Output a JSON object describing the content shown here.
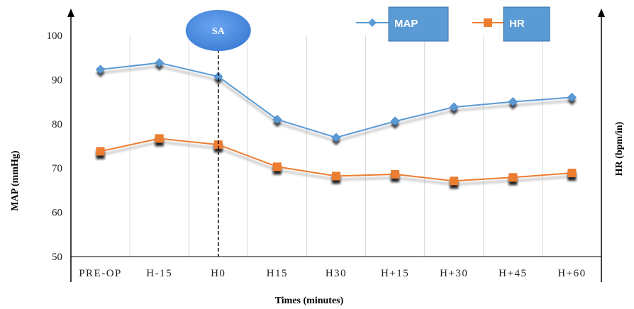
{
  "chart_data": {
    "type": "line",
    "categories": [
      "PRE-OP",
      "H-15",
      "H0",
      "H15",
      "H30",
      "H+15",
      "H+30",
      "H+45",
      "H+60"
    ],
    "series": [
      {
        "name": "MAP",
        "values": [
          92.3,
          93.8,
          90.7,
          81.0,
          76.9,
          80.6,
          83.8,
          85.0,
          86.0
        ],
        "color": "#5b9bd5",
        "marker": "diamond"
      },
      {
        "name": "HR",
        "values": [
          73.8,
          76.7,
          75.3,
          70.3,
          68.2,
          68.6,
          67.1,
          67.9,
          68.9
        ],
        "color": "#ed7d31",
        "marker": "square"
      }
    ],
    "xlabel": "Times (minutes)",
    "ylabel": "MAP (mmHg)",
    "y2label": "HR (bpm/in)",
    "ylim": [
      50,
      100
    ],
    "yticks": [
      "50",
      "60",
      "70",
      "80",
      "90",
      "100"
    ],
    "annotation": {
      "label": "SA",
      "at_category": "H0",
      "color": "#4a86e8"
    },
    "legend": {
      "placement": "top-right",
      "box_color": "#5b9bd5"
    },
    "grid": "vertical"
  }
}
